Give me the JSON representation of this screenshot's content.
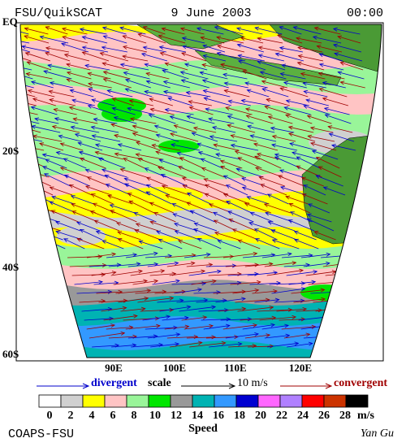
{
  "header": {
    "title": "FSU/QuikSCAT",
    "date": "9 June 2003",
    "time": "00:00"
  },
  "map": {
    "lat_labels": [
      "EQ",
      "20S",
      "40S",
      "60S"
    ],
    "lon_labels": [
      "90E",
      "100E",
      "110E",
      "120E"
    ]
  },
  "legend": {
    "divergent": "divergent",
    "scale": "scale",
    "scale_value": "10 m/s",
    "convergent": "convergent"
  },
  "colorbar": {
    "ticks": [
      0,
      2,
      4,
      6,
      8,
      10,
      12,
      14,
      16,
      18,
      20,
      22,
      24,
      26,
      28
    ],
    "colors": [
      "#ffffff",
      "#d0d0d0",
      "#ffff00",
      "#ffc4c4",
      "#99f599",
      "#00e600",
      "#999999",
      "#00b3b3",
      "#3399ff",
      "#0000d0",
      "#ff66ff",
      "#b080ff",
      "#ff0000",
      "#cc3300",
      "#000000"
    ],
    "unit": "m/s",
    "label": "Speed"
  },
  "footer": {
    "left": "COAPS-FSU",
    "right": "Yan Gu"
  }
}
